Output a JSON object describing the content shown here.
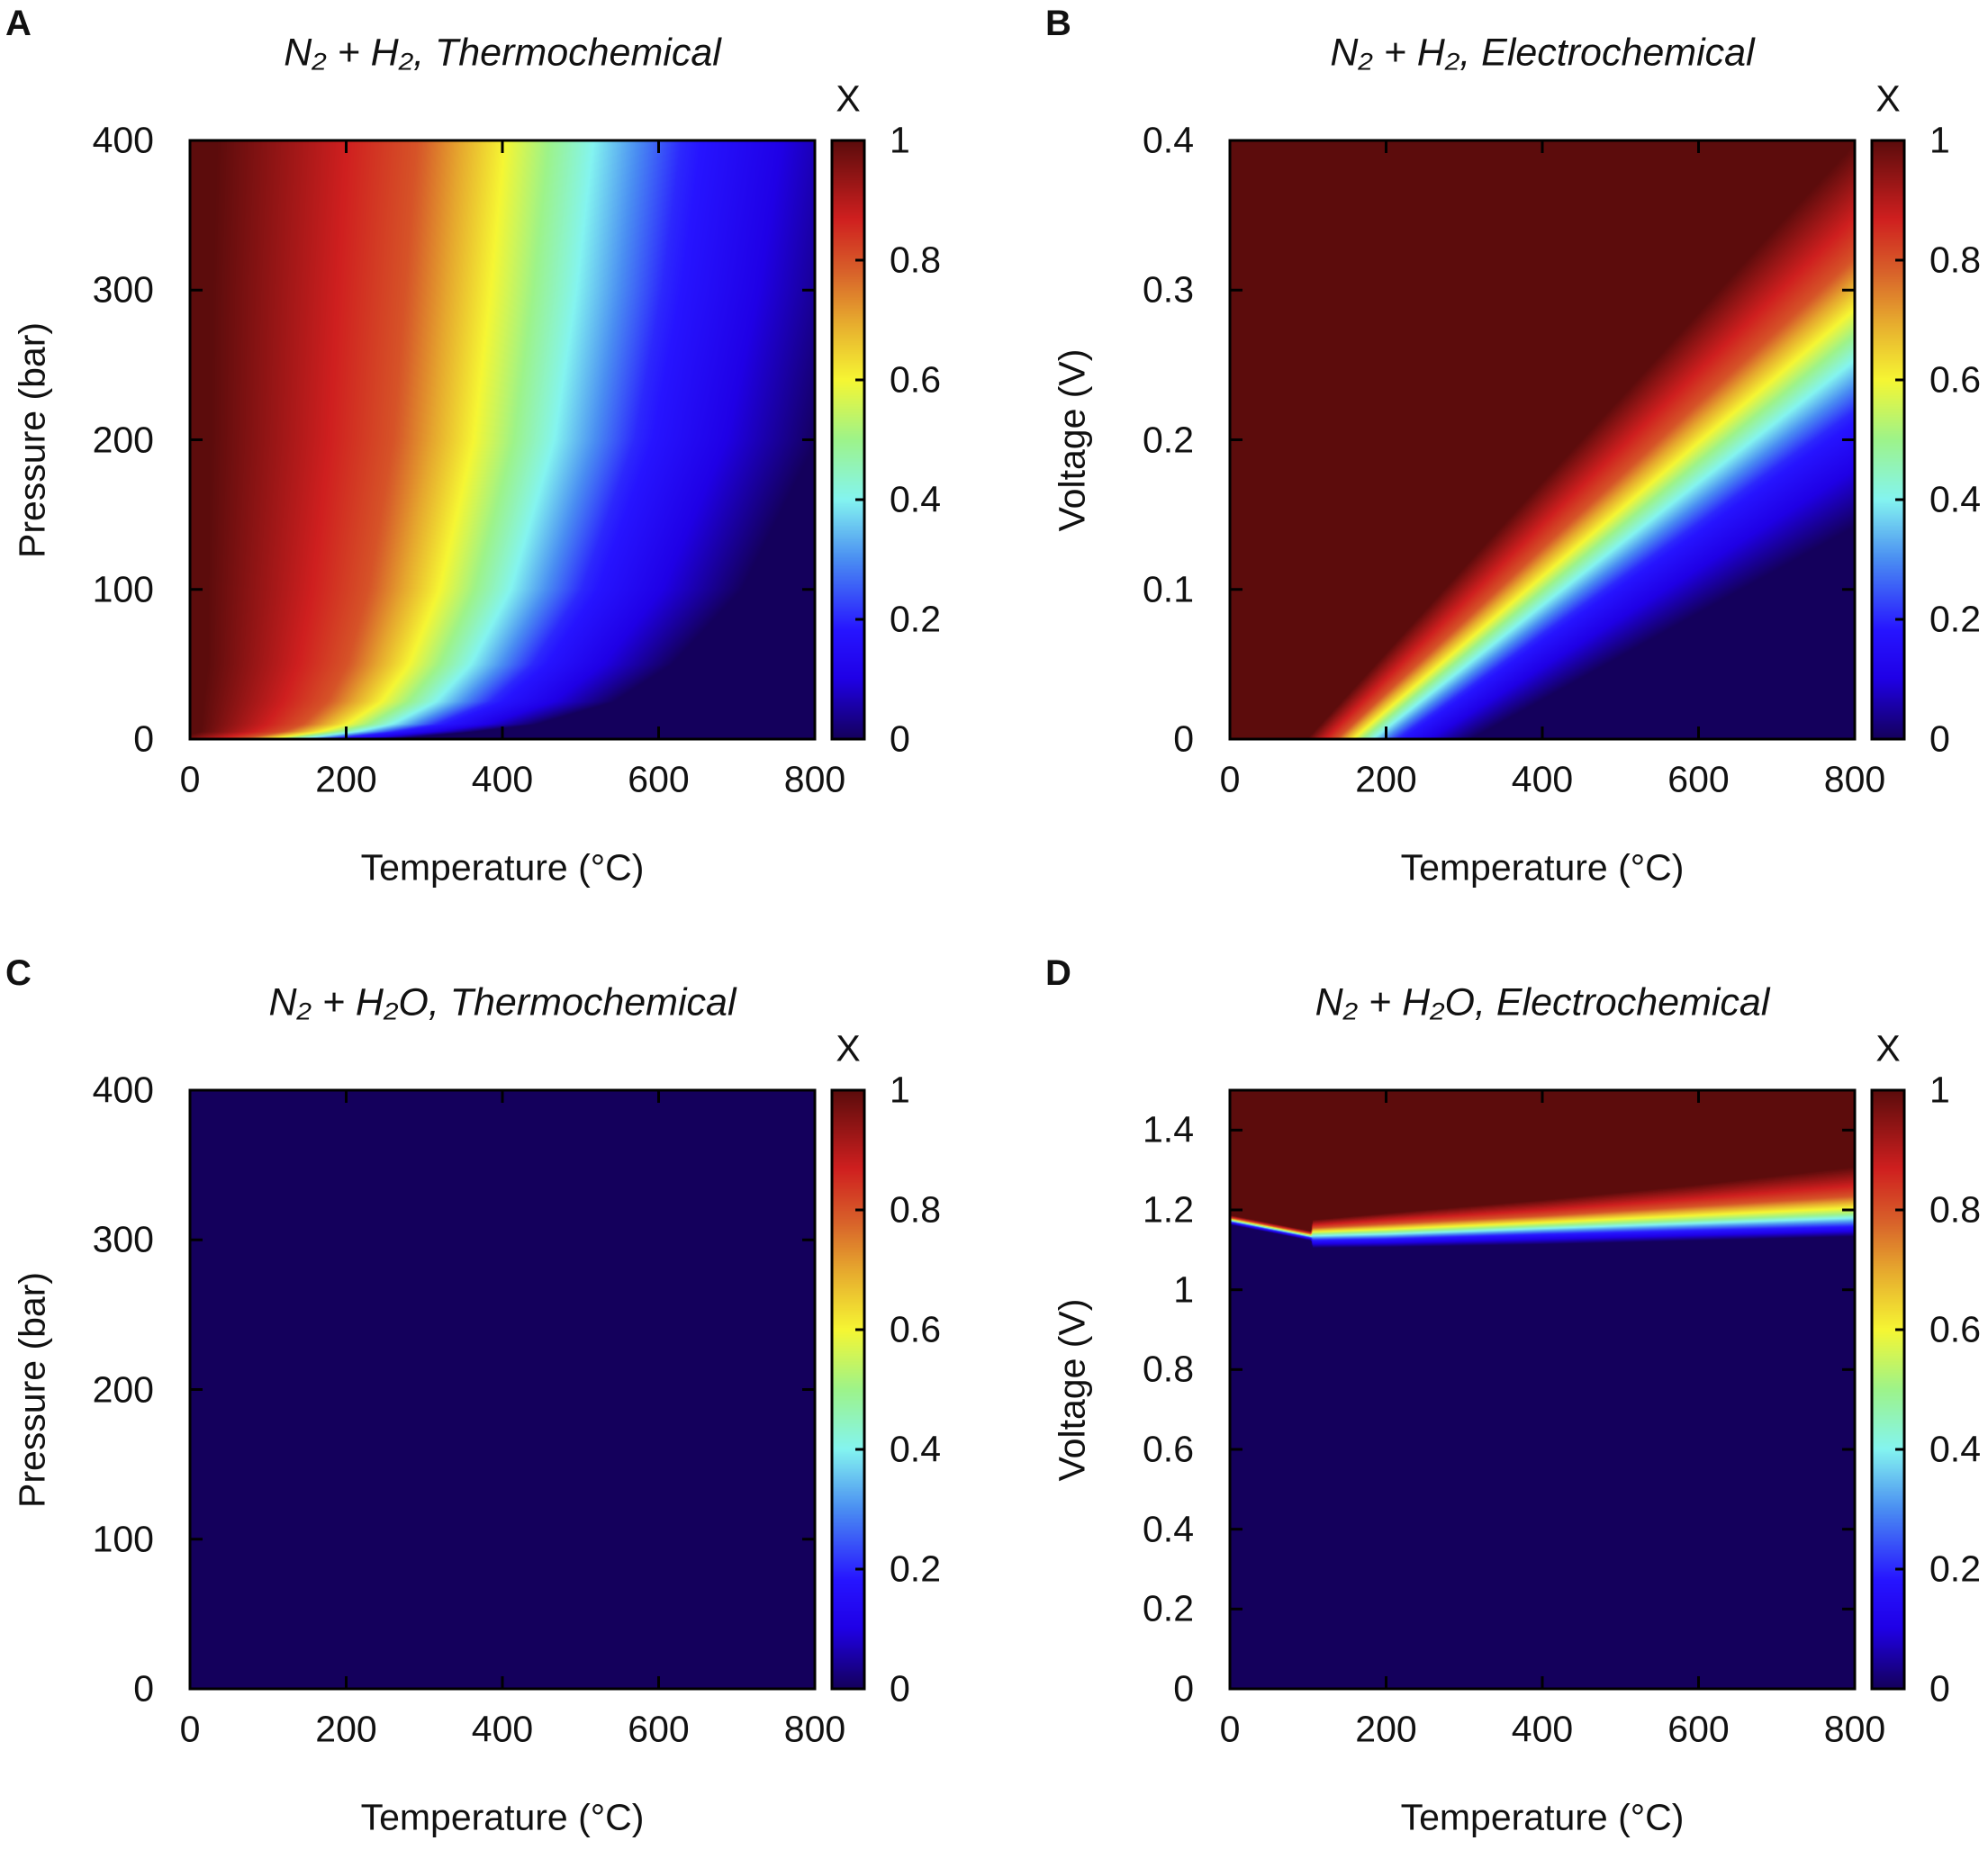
{
  "colormap": [
    [
      0,
      "#14005c"
    ],
    [
      0.1,
      "#1f00e6"
    ],
    [
      0.18,
      "#2614ff"
    ],
    [
      0.3,
      "#4a8ef2"
    ],
    [
      0.4,
      "#84f4f0"
    ],
    [
      0.5,
      "#9df38a"
    ],
    [
      0.6,
      "#f6f633"
    ],
    [
      0.7,
      "#e6a82e"
    ],
    [
      0.78,
      "#d8622a"
    ],
    [
      0.87,
      "#cf1f1f"
    ],
    [
      1,
      "#5c0c0c"
    ]
  ],
  "chart_data": [
    {
      "panel": "A",
      "type": "heatmap",
      "title": "N₂ + H₂, Thermochemical",
      "xlabel": "Temperature (°C)",
      "ylabel": "Pressure (bar)",
      "colorbar_label": "X",
      "xlim": [
        0,
        800
      ],
      "ylim": [
        0,
        400
      ],
      "clim": [
        0,
        1
      ],
      "xticks": [
        "0",
        "200",
        "400",
        "600",
        "800"
      ],
      "yticks": [
        "0",
        "100",
        "200",
        "300",
        "400"
      ],
      "cticks": [
        "0",
        "0.2",
        "0.4",
        "0.6",
        "0.8",
        "1"
      ],
      "contour_mode": "x_at_y",
      "levels": [
        0.05,
        0.2,
        0.5,
        0.8,
        0.95
      ],
      "y": [
        0,
        5,
        10,
        25,
        50,
        100,
        200,
        300,
        400
      ],
      "contours": [
        [
          238,
          175,
          120,
          65,
          2
        ],
        [
          340,
          261,
          190,
          119,
          40
        ],
        [
          413,
          316,
          230,
          144,
          47
        ],
        [
          504,
          385,
          280,
          175,
          56
        ],
        [
          573,
          439,
          320,
          201,
          67
        ],
        [
          656,
          502,
          365,
          228,
          74
        ],
        [
          745,
          570,
          415,
          260,
          85
        ],
        [
          790,
          605,
          440,
          275,
          90
        ],
        [
          822,
          630,
          460,
          290,
          98
        ]
      ]
    },
    {
      "panel": "B",
      "type": "heatmap",
      "title": "N₂ + H₂, Electrochemical",
      "xlabel": "Temperature (°C)",
      "ylabel": "Voltage (V)",
      "colorbar_label": "X",
      "xlim": [
        0,
        800
      ],
      "ylim": [
        0,
        0.4
      ],
      "clim": [
        0,
        1
      ],
      "xticks": [
        "0",
        "200",
        "400",
        "600",
        "800"
      ],
      "yticks": [
        "0",
        "0.1",
        "0.2",
        "0.3",
        "0.4"
      ],
      "cticks": [
        "0",
        "0.2",
        "0.4",
        "0.6",
        "0.8",
        "1"
      ],
      "contour_mode": "y_at_x",
      "levels": [
        0.05,
        0.2,
        0.5,
        0.8,
        0.95
      ],
      "x": [
        0,
        100,
        200,
        300,
        400,
        500,
        600,
        700,
        800
      ],
      "contours": [
        [
          -0.088,
          -0.08,
          -0.073,
          -0.066,
          -0.058
        ],
        [
          -0.057,
          -0.043,
          -0.03,
          -0.018,
          -0.004
        ],
        [
          -0.025,
          -0.005,
          0.013,
          0.031,
          0.051
        ],
        [
          0.006,
          0.032,
          0.056,
          0.079,
          0.106
        ],
        [
          0.037,
          0.07,
          0.099,
          0.128,
          0.161
        ],
        [
          0.068,
          0.107,
          0.142,
          0.176,
          0.215
        ],
        [
          0.099,
          0.144,
          0.185,
          0.225,
          0.27
        ],
        [
          0.13,
          0.182,
          0.227,
          0.273,
          0.325
        ],
        [
          0.161,
          0.219,
          0.27,
          0.322,
          0.379
        ]
      ]
    },
    {
      "panel": "C",
      "type": "heatmap",
      "title": "N₂ + H₂O, Thermochemical",
      "xlabel": "Temperature (°C)",
      "ylabel": "Pressure (bar)",
      "colorbar_label": "X",
      "xlim": [
        0,
        800
      ],
      "ylim": [
        0,
        400
      ],
      "clim": [
        0,
        1
      ],
      "xticks": [
        "0",
        "200",
        "400",
        "600",
        "800"
      ],
      "yticks": [
        "0",
        "100",
        "200",
        "300",
        "400"
      ],
      "cticks": [
        "0",
        "0.2",
        "0.4",
        "0.6",
        "0.8",
        "1"
      ],
      "contour_mode": "uniform",
      "value": 0
    },
    {
      "panel": "D",
      "type": "heatmap",
      "title": "N₂ + H₂O, Electrochemical",
      "xlabel": "Temperature (°C)",
      "ylabel": "Voltage (V)",
      "colorbar_label": "X",
      "xlim": [
        0,
        800
      ],
      "ylim": [
        0,
        1.5
      ],
      "clim": [
        0,
        1
      ],
      "xticks": [
        "0",
        "200",
        "400",
        "600",
        "800"
      ],
      "yticks": [
        "0",
        "0.2",
        "0.4",
        "0.6",
        "0.8",
        "1",
        "1.2",
        "1.4"
      ],
      "cticks": [
        "0",
        "0.2",
        "0.4",
        "0.6",
        "0.8",
        "1"
      ],
      "contour_mode": "y_at_x",
      "levels": [
        0.05,
        0.2,
        0.5,
        0.8,
        0.95
      ],
      "x": [
        0,
        104,
        106,
        200,
        400,
        600,
        800
      ],
      "contours": [
        [
          1.165,
          1.17,
          1.175,
          1.18,
          1.185
        ],
        [
          1.125,
          1.13,
          1.135,
          1.14,
          1.145
        ],
        [
          1.11,
          1.125,
          1.14,
          1.155,
          1.17
        ],
        [
          1.112,
          1.128,
          1.145,
          1.165,
          1.185
        ],
        [
          1.12,
          1.14,
          1.16,
          1.185,
          1.215
        ],
        [
          1.13,
          1.15,
          1.175,
          1.21,
          1.25
        ],
        [
          1.14,
          1.16,
          1.19,
          1.235,
          1.29
        ]
      ]
    }
  ]
}
